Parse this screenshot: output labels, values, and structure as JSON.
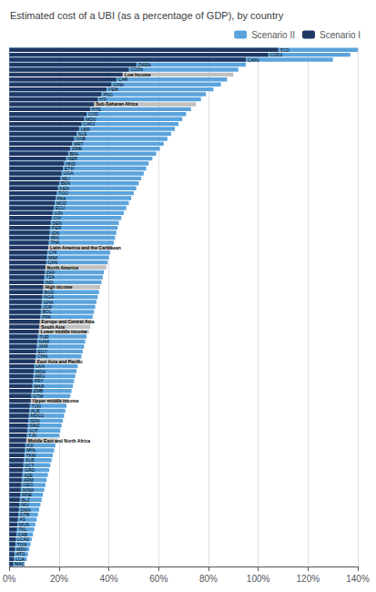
{
  "chart_data": {
    "type": "bar",
    "orientation": "horizontal",
    "title": "Estimated cost of a UBI (as a percentage of GDP), by country",
    "categories": [
      "MAC",
      "LCA",
      "ATG",
      "MDV",
      "TON",
      "LCA2",
      "CAB",
      "TKL",
      "MUS",
      "AS",
      "GTB",
      "DMA",
      "NIU",
      "BLZ",
      "MNE",
      "WSM",
      "GEO",
      "ARM",
      "AZE",
      "GRD",
      "VCT",
      "SLB",
      "TKM",
      "MHL",
      "FJI",
      "Middle East and North Africa",
      "TJK",
      "VUT",
      "SWZ",
      "SDN",
      "MDG2",
      "ALB",
      "TUN",
      "Upper middle income",
      "GTM",
      "ZMB",
      "MAR",
      "PRY",
      "ARG",
      "MDA",
      "LKA",
      "East Asia and Pacific",
      "CHN",
      "EGY",
      "JAM",
      "NAM",
      "TUR",
      "Lower middle income",
      "South Asia",
      "Europe and Central Asia",
      "PRK",
      "BOL",
      "JOR",
      "GHA",
      "NGA",
      "BGD",
      "High income",
      "IND",
      "TZA",
      "ZAF",
      "North America",
      "CAN",
      "MWI",
      "CHI",
      "Latin America and the Caribbean",
      "THA",
      "IRN",
      "IDN",
      "PER",
      "SEN",
      "CIV",
      "GIN",
      "ECU",
      "MOZ",
      "PAK",
      "TGO",
      "KEN",
      "BEN",
      "MLI",
      "UGA",
      "ETH",
      "HND",
      "NER",
      "BFA",
      "ZWE",
      "MRT",
      "GNB",
      "SLE",
      "LBR",
      "CAF2",
      "MDG",
      "COD",
      "HTE",
      "Sub-Saharan Africa",
      "HTI",
      "PNG",
      "YEM",
      "GINb",
      "CAR",
      "Low Income",
      "CODb",
      "ZWEb",
      "CAFb",
      "COD2",
      "TCD"
    ],
    "series": [
      {
        "name": "Scenario II",
        "color": "#5BA3DC",
        "values": [
          0.06,
          0.07,
          0.075,
          0.08,
          0.085,
          0.09,
          0.095,
          0.1,
          0.105,
          0.11,
          0.115,
          0.12,
          0.125,
          0.13,
          0.135,
          0.14,
          0.145,
          0.15,
          0.155,
          0.16,
          0.165,
          0.17,
          0.175,
          0.18,
          0.185,
          0.195,
          0.2,
          0.205,
          0.21,
          0.215,
          0.22,
          0.225,
          0.23,
          0.24,
          0.245,
          0.25,
          0.255,
          0.26,
          0.265,
          0.27,
          0.275,
          0.285,
          0.29,
          0.295,
          0.3,
          0.305,
          0.31,
          0.32,
          0.325,
          0.33,
          0.335,
          0.34,
          0.345,
          0.35,
          0.355,
          0.36,
          0.365,
          0.37,
          0.375,
          0.38,
          0.39,
          0.395,
          0.4,
          0.405,
          0.415,
          0.42,
          0.425,
          0.43,
          0.435,
          0.44,
          0.45,
          0.46,
          0.47,
          0.48,
          0.49,
          0.5,
          0.51,
          0.52,
          0.53,
          0.54,
          0.55,
          0.56,
          0.575,
          0.59,
          0.605,
          0.62,
          0.635,
          0.65,
          0.665,
          0.68,
          0.695,
          0.71,
          0.73,
          0.75,
          0.77,
          0.79,
          0.82,
          0.85,
          0.875,
          0.9,
          0.92,
          0.95,
          1.3,
          1.37,
          1.4
        ],
        "colors": [
          "#5BA3DC",
          "#5BA3DC",
          "#5BA3DC",
          "#5BA3DC",
          "#5BA3DC",
          "#5BA3DC",
          "#5BA3DC",
          "#5BA3DC",
          "#5BA3DC",
          "#5BA3DC",
          "#5BA3DC",
          "#5BA3DC",
          "#5BA3DC",
          "#5BA3DC",
          "#5BA3DC",
          "#5BA3DC",
          "#5BA3DC",
          "#5BA3DC",
          "#5BA3DC",
          "#5BA3DC",
          "#5BA3DC",
          "#5BA3DC",
          "#5BA3DC",
          "#5BA3DC",
          "#5BA3DC",
          "#C0C0C0",
          "#5BA3DC",
          "#5BA3DC",
          "#5BA3DC",
          "#5BA3DC",
          "#5BA3DC",
          "#5BA3DC",
          "#5BA3DC",
          "#C0C0C0",
          "#5BA3DC",
          "#5BA3DC",
          "#5BA3DC",
          "#5BA3DC",
          "#5BA3DC",
          "#5BA3DC",
          "#5BA3DC",
          "#C0C0C0",
          "#5BA3DC",
          "#5BA3DC",
          "#5BA3DC",
          "#5BA3DC",
          "#5BA3DC",
          "#C0C0C0",
          "#C0C0C0",
          "#C0C0C0",
          "#5BA3DC",
          "#5BA3DC",
          "#5BA3DC",
          "#5BA3DC",
          "#5BA3DC",
          "#5BA3DC",
          "#C0C0C0",
          "#5BA3DC",
          "#5BA3DC",
          "#5BA3DC",
          "#C0C0C0",
          "#5BA3DC",
          "#5BA3DC",
          "#5BA3DC",
          "#C0C0C0",
          "#5BA3DC",
          "#5BA3DC",
          "#5BA3DC",
          "#5BA3DC",
          "#5BA3DC",
          "#5BA3DC",
          "#5BA3DC",
          "#5BA3DC",
          "#5BA3DC",
          "#5BA3DC",
          "#5BA3DC",
          "#5BA3DC",
          "#5BA3DC",
          "#5BA3DC",
          "#5BA3DC",
          "#5BA3DC",
          "#5BA3DC",
          "#5BA3DC",
          "#5BA3DC",
          "#5BA3DC",
          "#5BA3DC",
          "#5BA3DC",
          "#5BA3DC",
          "#5BA3DC",
          "#5BA3DC",
          "#5BA3DC",
          "#5BA3DC",
          "#5BA3DC",
          "#C0C0C0",
          "#5BA3DC",
          "#5BA3DC",
          "#5BA3DC",
          "#5BA3DC",
          "#5BA3DC",
          "#C0C0C0",
          "#5BA3DC",
          "#5BA3DC",
          "#5BA3DC",
          "#5BA3DC",
          "#5BA3DC"
        ]
      },
      {
        "name": "Scenario I",
        "color": "#1F3864",
        "values": [
          0.015,
          0.018,
          0.02,
          0.022,
          0.024,
          0.026,
          0.028,
          0.03,
          0.032,
          0.034,
          0.036,
          0.038,
          0.04,
          0.042,
          0.044,
          0.046,
          0.048,
          0.05,
          0.052,
          0.054,
          0.056,
          0.058,
          0.06,
          0.062,
          0.064,
          0.068,
          0.07,
          0.072,
          0.074,
          0.076,
          0.078,
          0.08,
          0.082,
          0.086,
          0.088,
          0.09,
          0.092,
          0.094,
          0.096,
          0.098,
          0.1,
          0.104,
          0.106,
          0.108,
          0.11,
          0.112,
          0.114,
          0.118,
          0.12,
          0.122,
          0.124,
          0.126,
          0.128,
          0.13,
          0.132,
          0.134,
          0.136,
          0.138,
          0.14,
          0.142,
          0.145,
          0.148,
          0.15,
          0.152,
          0.156,
          0.158,
          0.16,
          0.162,
          0.164,
          0.166,
          0.17,
          0.174,
          0.178,
          0.182,
          0.186,
          0.19,
          0.195,
          0.2,
          0.205,
          0.21,
          0.215,
          0.22,
          0.228,
          0.236,
          0.244,
          0.252,
          0.26,
          0.27,
          0.28,
          0.29,
          0.3,
          0.31,
          0.325,
          0.34,
          0.355,
          0.37,
          0.39,
          0.41,
          0.43,
          0.455,
          0.48,
          0.51,
          0.95,
          1.04,
          1.08
        ]
      }
    ],
    "xlim": [
      0,
      1.4
    ],
    "xticks": [
      {
        "value": 0.0,
        "label": "0%"
      },
      {
        "value": 0.2,
        "label": "20%"
      },
      {
        "value": 0.4,
        "label": "40%"
      },
      {
        "value": 0.6,
        "label": "60%"
      },
      {
        "value": 0.8,
        "label": "80%"
      },
      {
        "value": 1.0,
        "label": "100%"
      },
      {
        "value": 1.2,
        "label": "120%"
      },
      {
        "value": 1.4,
        "label": "140%"
      }
    ],
    "grid": true,
    "legend": "upper right",
    "tick_labels": "x"
  }
}
